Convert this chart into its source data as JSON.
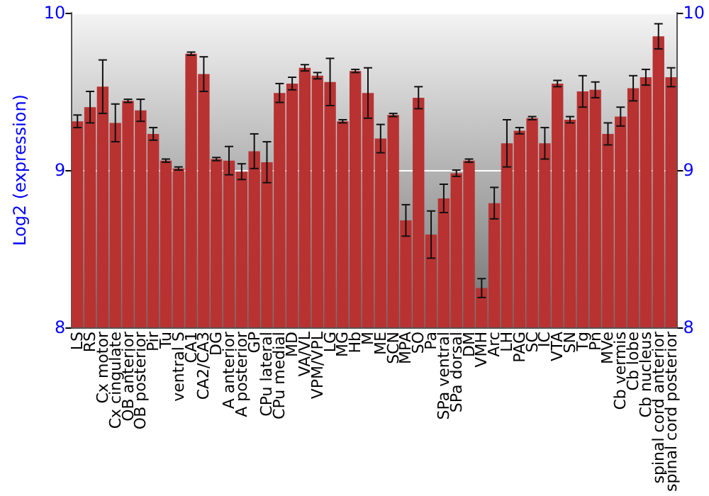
{
  "chart_data": {
    "type": "bar",
    "ylabel": "Log2 (expression)",
    "categories": [
      "LS",
      "RS",
      "Cx motor",
      "Cx cingulate",
      "OB anterior",
      "OB posterior",
      "Pir",
      "Tu",
      "ventral S",
      "CA1",
      "CA2/CA3",
      "DG",
      "A anterior",
      "A posterior",
      "GP",
      "CPu lateral",
      "CPu medial",
      "MD",
      "VA/VL",
      "VPM/VPL",
      "LG",
      "MG",
      "Hb",
      "M",
      "ME",
      "SCN",
      "MPA",
      "SO",
      "Pa",
      "SPa ventral",
      "SPa dorsal",
      "DM",
      "VMH",
      "Arc",
      "LH",
      "PAG",
      "SC",
      "IC",
      "VTA",
      "SN",
      "Tg",
      "Pn",
      "MVe",
      "Cb vermis",
      "Cb lobe",
      "Cb nucleus",
      "spinal cord anterior",
      "spinal cord posterior"
    ],
    "values": [
      9.31,
      9.4,
      9.53,
      9.3,
      9.44,
      9.38,
      9.23,
      9.06,
      9.01,
      9.74,
      9.61,
      9.07,
      9.06,
      8.99,
      9.12,
      9.05,
      9.49,
      9.55,
      9.65,
      9.6,
      9.56,
      9.31,
      9.63,
      9.49,
      9.2,
      9.35,
      8.68,
      9.46,
      8.59,
      8.82,
      8.98,
      9.06,
      8.25,
      8.79,
      9.17,
      9.25,
      9.33,
      9.17,
      9.55,
      9.32,
      9.5,
      9.51,
      9.23,
      9.34,
      9.52,
      9.59,
      9.85,
      9.59
    ],
    "errors": [
      0.04,
      0.1,
      0.17,
      0.12,
      0.01,
      0.07,
      0.04,
      0.01,
      0.01,
      0.01,
      0.11,
      0.01,
      0.09,
      0.05,
      0.11,
      0.13,
      0.06,
      0.04,
      0.02,
      0.02,
      0.15,
      0.01,
      0.01,
      0.16,
      0.09,
      0.01,
      0.1,
      0.07,
      0.15,
      0.09,
      0.02,
      0.01,
      0.06,
      0.1,
      0.15,
      0.02,
      0.01,
      0.1,
      0.02,
      0.02,
      0.1,
      0.05,
      0.07,
      0.06,
      0.08,
      0.05,
      0.08,
      0.06
    ],
    "color": "#b83232",
    "ylim": [
      8,
      10
    ],
    "yticks": [
      8,
      9,
      10
    ],
    "y2lim": [
      8,
      10
    ],
    "y2ticks": [
      8,
      9,
      10
    ],
    "grid": "y"
  }
}
